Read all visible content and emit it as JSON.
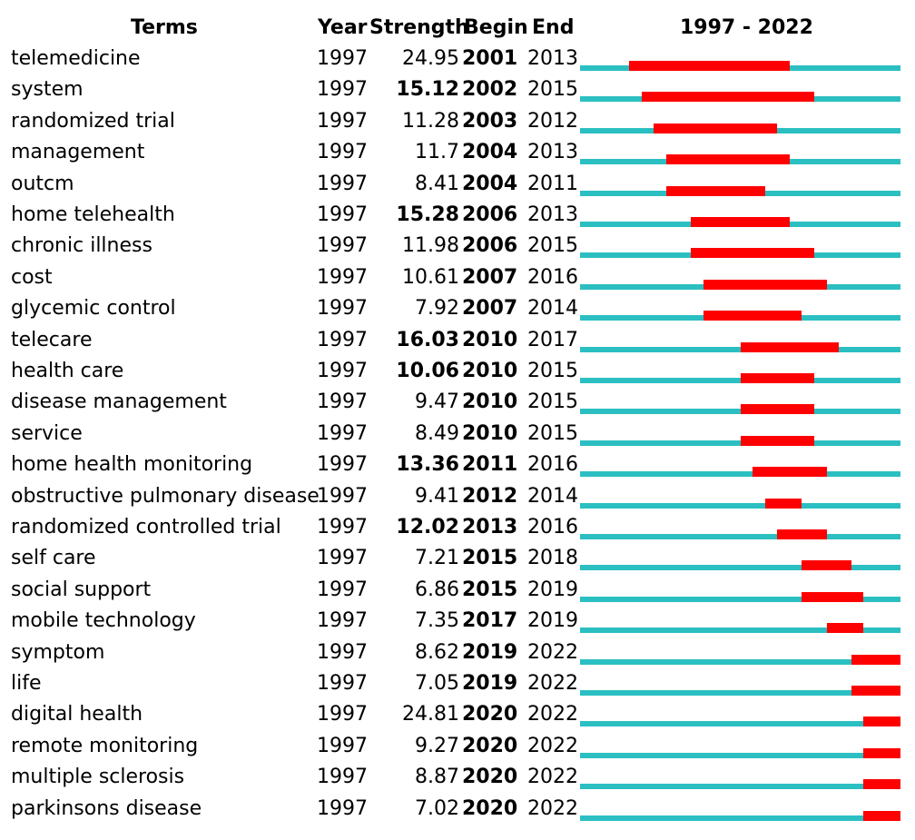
{
  "headers": {
    "terms": "Terms",
    "year": "Year",
    "strength": "Strength",
    "begin": "Begin",
    "end": "End",
    "range": "1997 - 2022"
  },
  "colors": {
    "baseline": "#2bbfc2",
    "burst": "#ff0000"
  },
  "chart_data": {
    "type": "table",
    "timeline_start": 1997,
    "timeline_end": 2022,
    "columns": [
      "Terms",
      "Year",
      "Strength",
      "Begin",
      "End"
    ],
    "rows": [
      {
        "term": "telemedicine",
        "year": "1997",
        "strength": "24.95",
        "begin": "2001",
        "end": "2013",
        "strength_bold": false
      },
      {
        "term": "system",
        "year": "1997",
        "strength": "15.12",
        "begin": "2002",
        "end": "2015",
        "strength_bold": true
      },
      {
        "term": "randomized trial",
        "year": "1997",
        "strength": "11.28",
        "begin": "2003",
        "end": "2012",
        "strength_bold": false
      },
      {
        "term": "management",
        "year": "1997",
        "strength": "11.7",
        "begin": "2004",
        "end": "2013",
        "strength_bold": false
      },
      {
        "term": "outcm",
        "year": "1997",
        "strength": "8.41",
        "begin": "2004",
        "end": "2011",
        "strength_bold": false
      },
      {
        "term": "home telehealth",
        "year": "1997",
        "strength": "15.28",
        "begin": "2006",
        "end": "2013",
        "strength_bold": true
      },
      {
        "term": "chronic illness",
        "year": "1997",
        "strength": "11.98",
        "begin": "2006",
        "end": "2015",
        "strength_bold": false
      },
      {
        "term": "cost",
        "year": "1997",
        "strength": "10.61",
        "begin": "2007",
        "end": "2016",
        "strength_bold": false
      },
      {
        "term": "glycemic control",
        "year": "1997",
        "strength": "7.92",
        "begin": "2007",
        "end": "2014",
        "strength_bold": false
      },
      {
        "term": "telecare",
        "year": "1997",
        "strength": "16.03",
        "begin": "2010",
        "end": "2017",
        "strength_bold": true
      },
      {
        "term": "health care",
        "year": "1997",
        "strength": "10.06",
        "begin": "2010",
        "end": "2015",
        "strength_bold": true
      },
      {
        "term": "disease management",
        "year": "1997",
        "strength": "9.47",
        "begin": "2010",
        "end": "2015",
        "strength_bold": false
      },
      {
        "term": "service",
        "year": "1997",
        "strength": "8.49",
        "begin": "2010",
        "end": "2015",
        "strength_bold": false
      },
      {
        "term": "home health monitoring",
        "year": "1997",
        "strength": "13.36",
        "begin": "2011",
        "end": "2016",
        "strength_bold": true
      },
      {
        "term": "obstructive pulmonary disease",
        "year": "1997",
        "strength": "9.41",
        "begin": "2012",
        "end": "2014",
        "strength_bold": false
      },
      {
        "term": "randomized controlled trial",
        "year": "1997",
        "strength": "12.02",
        "begin": "2013",
        "end": "2016",
        "strength_bold": true
      },
      {
        "term": "self care",
        "year": "1997",
        "strength": "7.21",
        "begin": "2015",
        "end": "2018",
        "strength_bold": false
      },
      {
        "term": "social support",
        "year": "1997",
        "strength": "6.86",
        "begin": "2015",
        "end": "2019",
        "strength_bold": false
      },
      {
        "term": "mobile technology",
        "year": "1997",
        "strength": "7.35",
        "begin": "2017",
        "end": "2019",
        "strength_bold": false
      },
      {
        "term": "symptom",
        "year": "1997",
        "strength": "8.62",
        "begin": "2019",
        "end": "2022",
        "strength_bold": false
      },
      {
        "term": "life",
        "year": "1997",
        "strength": "7.05",
        "begin": "2019",
        "end": "2022",
        "strength_bold": false
      },
      {
        "term": "digital health",
        "year": "1997",
        "strength": "24.81",
        "begin": "2020",
        "end": "2022",
        "strength_bold": false
      },
      {
        "term": "remote monitoring",
        "year": "1997",
        "strength": "9.27",
        "begin": "2020",
        "end": "2022",
        "strength_bold": false
      },
      {
        "term": "multiple sclerosis",
        "year": "1997",
        "strength": "8.87",
        "begin": "2020",
        "end": "2022",
        "strength_bold": false
      },
      {
        "term": "parkinsons disease",
        "year": "1997",
        "strength": "7.02",
        "begin": "2020",
        "end": "2022",
        "strength_bold": false
      }
    ]
  }
}
